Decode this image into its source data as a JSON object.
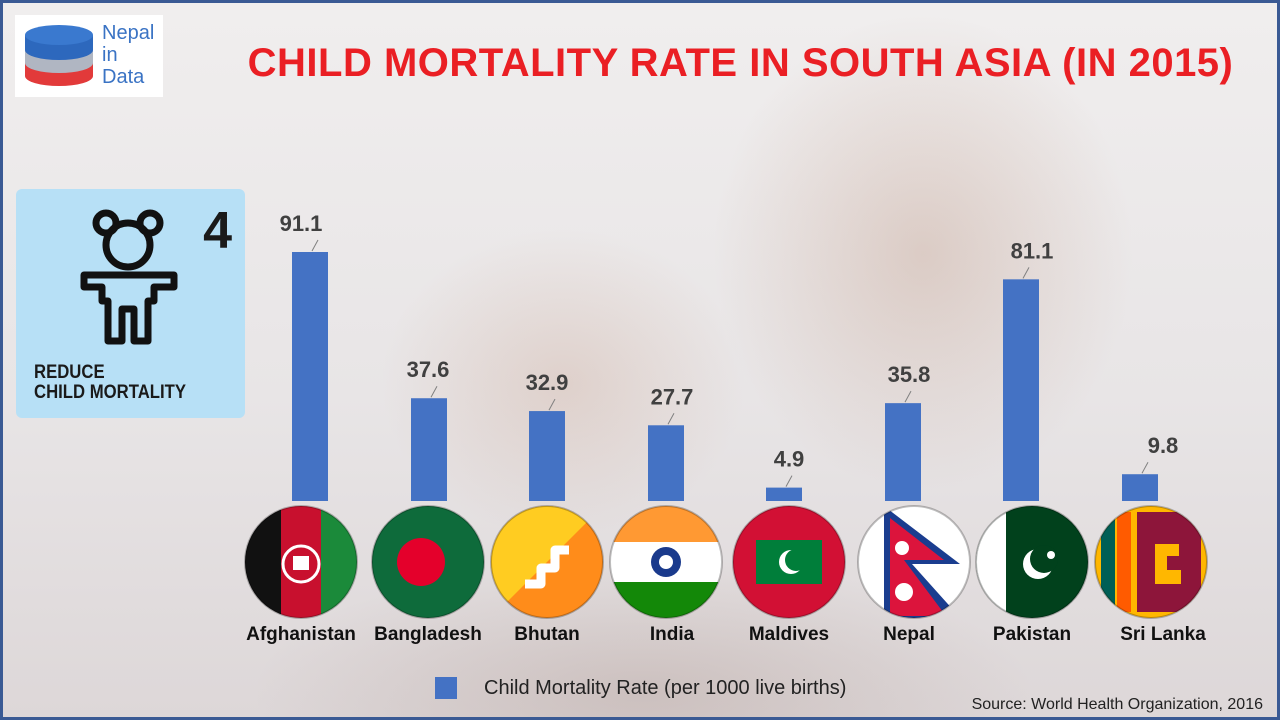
{
  "logo": {
    "line1": "Nepal",
    "line2": "in",
    "line3": "Data",
    "icon": "database-icon",
    "colors": [
      "#3a73c4",
      "#b0b6c2",
      "#e23a3a"
    ]
  },
  "title": "CHILD MORTALITY RATE IN SOUTH ASIA (IN 2015)",
  "sdg": {
    "number": "4",
    "caption_line1": "REDUCE",
    "caption_line2": "CHILD MORTALITY",
    "icon": "child-icon",
    "background": "#b7e0f6"
  },
  "chart_data": {
    "type": "bar",
    "title": "CHILD MORTALITY RATE IN SOUTH ASIA (IN 2015)",
    "categories": [
      "Afghanistan",
      "Bangladesh",
      "Bhutan",
      "India",
      "Maldives",
      "Nepal",
      "Pakistan",
      "Sri Lanka"
    ],
    "series": [
      {
        "name": "Child Mortality Rate (per 1000 live births)",
        "values": [
          91.1,
          37.6,
          32.9,
          27.7,
          4.9,
          35.8,
          81.1,
          9.8
        ],
        "color": "#4472c4"
      }
    ],
    "data_labels": [
      "91.1",
      "37.6",
      "32.9",
      "27.7",
      "4.9",
      "35.8",
      "81.1",
      "9.8"
    ],
    "ylim": [
      0,
      91.1
    ],
    "axes_visible": false,
    "grid": false,
    "legend_position": "bottom",
    "category_markers": [
      "afghanistan-flag-icon",
      "bangladesh-flag-icon",
      "bhutan-flag-icon",
      "india-flag-icon",
      "maldives-flag-icon",
      "nepal-flag-icon",
      "pakistan-flag-icon",
      "sri-lanka-flag-icon"
    ]
  },
  "legend": {
    "label": "Child Mortality Rate (per 1000 live births)",
    "color": "#4472c4"
  },
  "source": "Source: World Health Organization, 2016"
}
